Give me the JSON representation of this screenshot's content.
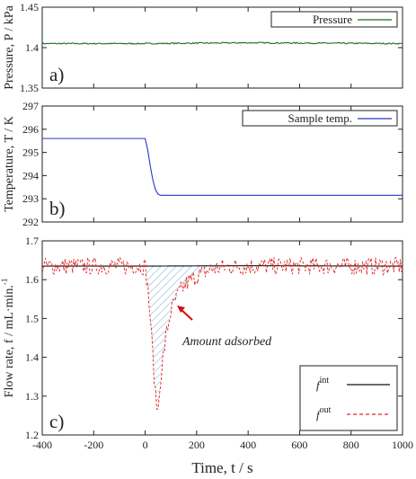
{
  "chart_data": [
    {
      "type": "line",
      "panel_label": "a)",
      "ylabel": "Pressure,  P / kPa",
      "ylim": [
        1.35,
        1.45
      ],
      "yticks": [
        "1.45",
        "1.4",
        "1.35"
      ],
      "ytick_values": [
        1.45,
        1.4,
        1.35
      ],
      "xlim": [
        -400,
        1000
      ],
      "grid": false,
      "legend_position": "top-right",
      "series": [
        {
          "name": "Pressure",
          "color": "#1f6b1f",
          "style": "solid",
          "x": [
            -400,
            0,
            400,
            1000
          ],
          "y": [
            1.405,
            1.405,
            1.406,
            1.405
          ]
        }
      ]
    },
    {
      "type": "line",
      "panel_label": "b)",
      "ylabel": "Temperature,  T / K",
      "ylim": [
        292,
        297
      ],
      "yticks": [
        "297",
        "296",
        "295",
        "294",
        "293",
        "292"
      ],
      "ytick_values": [
        297,
        296,
        295,
        294,
        293,
        292
      ],
      "xlim": [
        -400,
        1000
      ],
      "grid": false,
      "legend_position": "top-right",
      "series": [
        {
          "name": "Sample temp.",
          "color": "#2a35c8",
          "style": "solid",
          "x": [
            -400,
            0,
            10,
            20,
            30,
            40,
            50,
            60,
            1000
          ],
          "y": [
            295.6,
            295.6,
            295.1,
            294.4,
            293.8,
            293.4,
            293.2,
            293.15,
            293.15
          ]
        }
      ]
    },
    {
      "type": "line",
      "panel_label": "c)",
      "ylabel": "Flow rate,  f / mL·min.",
      "ylabel_sup": "-1",
      "xlabel": "Time,  t / s",
      "ylim": [
        1.2,
        1.7
      ],
      "yticks": [
        "1.7",
        "1.6",
        "1.5",
        "1.4",
        "1.3",
        "1.2"
      ],
      "ytick_values": [
        1.7,
        1.6,
        1.5,
        1.4,
        1.3,
        1.2
      ],
      "xlim": [
        -400,
        1000
      ],
      "xticks": [
        "-400",
        "-200",
        "0",
        "200",
        "400",
        "600",
        "800",
        "1000"
      ],
      "xtick_values": [
        -400,
        -200,
        0,
        200,
        400,
        600,
        800,
        1000
      ],
      "grid": false,
      "legend_position": "bottom-right",
      "annotation": "Amount adsorbed",
      "series": [
        {
          "name": "f",
          "sup": "int",
          "color": "#111111",
          "style": "solid",
          "x": [
            -400,
            0,
            400,
            1000
          ],
          "y": [
            1.635,
            1.635,
            1.636,
            1.635
          ]
        },
        {
          "name": "f",
          "sup": "out",
          "color": "#e02020",
          "style": "dashed",
          "x": [
            -400,
            0,
            10,
            20,
            30,
            40,
            50,
            60,
            80,
            100,
            130,
            160,
            200,
            250,
            300,
            400,
            1000
          ],
          "y": [
            1.635,
            1.635,
            1.58,
            1.5,
            1.4,
            1.3,
            1.26,
            1.35,
            1.45,
            1.52,
            1.565,
            1.59,
            1.61,
            1.625,
            1.632,
            1.635,
            1.635
          ]
        }
      ]
    }
  ]
}
